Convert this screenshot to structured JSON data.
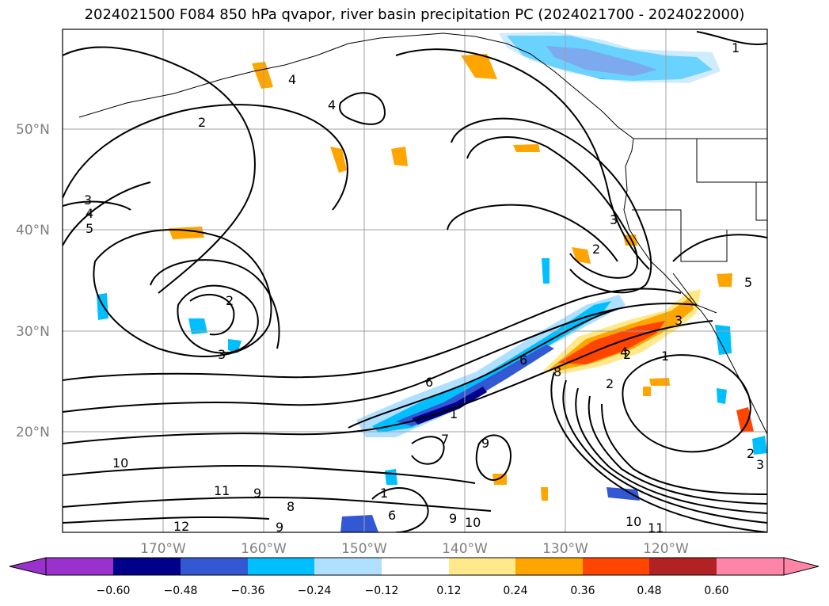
{
  "title": "2024021500 F084 850 hPa qvapor, river basin precipitation PC (2024021700 - 2024022000)",
  "map": {
    "lat_labels": [
      "50°N",
      "40°N",
      "30°N",
      "20°N"
    ],
    "lon_labels": [
      "170°W",
      "160°W",
      "150°W",
      "140°W",
      "130°W",
      "120°W"
    ],
    "contour_labels": [
      "1",
      "2",
      "3",
      "4",
      "5",
      "2",
      "3",
      "2",
      "3",
      "4",
      "4",
      "2",
      "3",
      "1",
      "2",
      "6",
      "6",
      "7",
      "8",
      "9",
      "10",
      "11",
      "12",
      "9",
      "8",
      "9",
      "9",
      "10",
      "10",
      "11",
      "1",
      "6",
      "2",
      "4",
      "1",
      "3",
      "5"
    ]
  },
  "colorbar": {
    "ticks": [
      "−0.60",
      "−0.48",
      "−0.36",
      "−0.24",
      "−0.12",
      "0.12",
      "0.24",
      "0.36",
      "0.48",
      "0.60"
    ],
    "colors": [
      "#9932cc",
      "#00008b",
      "#3358d4",
      "#00bfff",
      "#afe0ff",
      "#ffffff",
      "#ffe98a",
      "#ffa500",
      "#ff4500",
      "#b22222",
      "#ff85a8"
    ]
  }
}
